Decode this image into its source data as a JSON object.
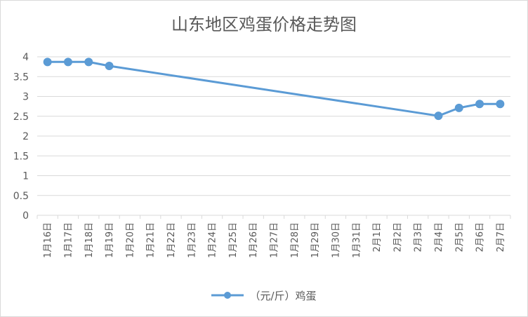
{
  "chart_data": {
    "type": "line",
    "title": "山东地区鸡蛋价格走势图",
    "xlabel": "",
    "ylabel": "",
    "ylim": [
      0,
      4
    ],
    "yticks": [
      "0",
      "0.5",
      "1",
      "1.5",
      "2",
      "2.5",
      "3",
      "3.5",
      "4"
    ],
    "grid": true,
    "legend_position": "bottom",
    "categories": [
      "1月16日",
      "1月17日",
      "1月18日",
      "1月19日",
      "1月20日",
      "1月21日",
      "1月22日",
      "1月23日",
      "1月24日",
      "1月25日",
      "1月26日",
      "1月27日",
      "1月28日",
      "1月29日",
      "1月30日",
      "1月31日",
      "2月1日",
      "2月2日",
      "2月3日",
      "2月4日",
      "2月5日",
      "2月6日",
      "2月7日"
    ],
    "series": [
      {
        "name": "（元/斤）鸡蛋",
        "color": "#5b9bd5",
        "values": [
          3.87,
          3.87,
          3.87,
          3.77,
          null,
          null,
          null,
          null,
          null,
          null,
          null,
          null,
          null,
          null,
          null,
          null,
          null,
          null,
          null,
          2.51,
          2.71,
          2.81,
          2.81
        ]
      }
    ]
  }
}
